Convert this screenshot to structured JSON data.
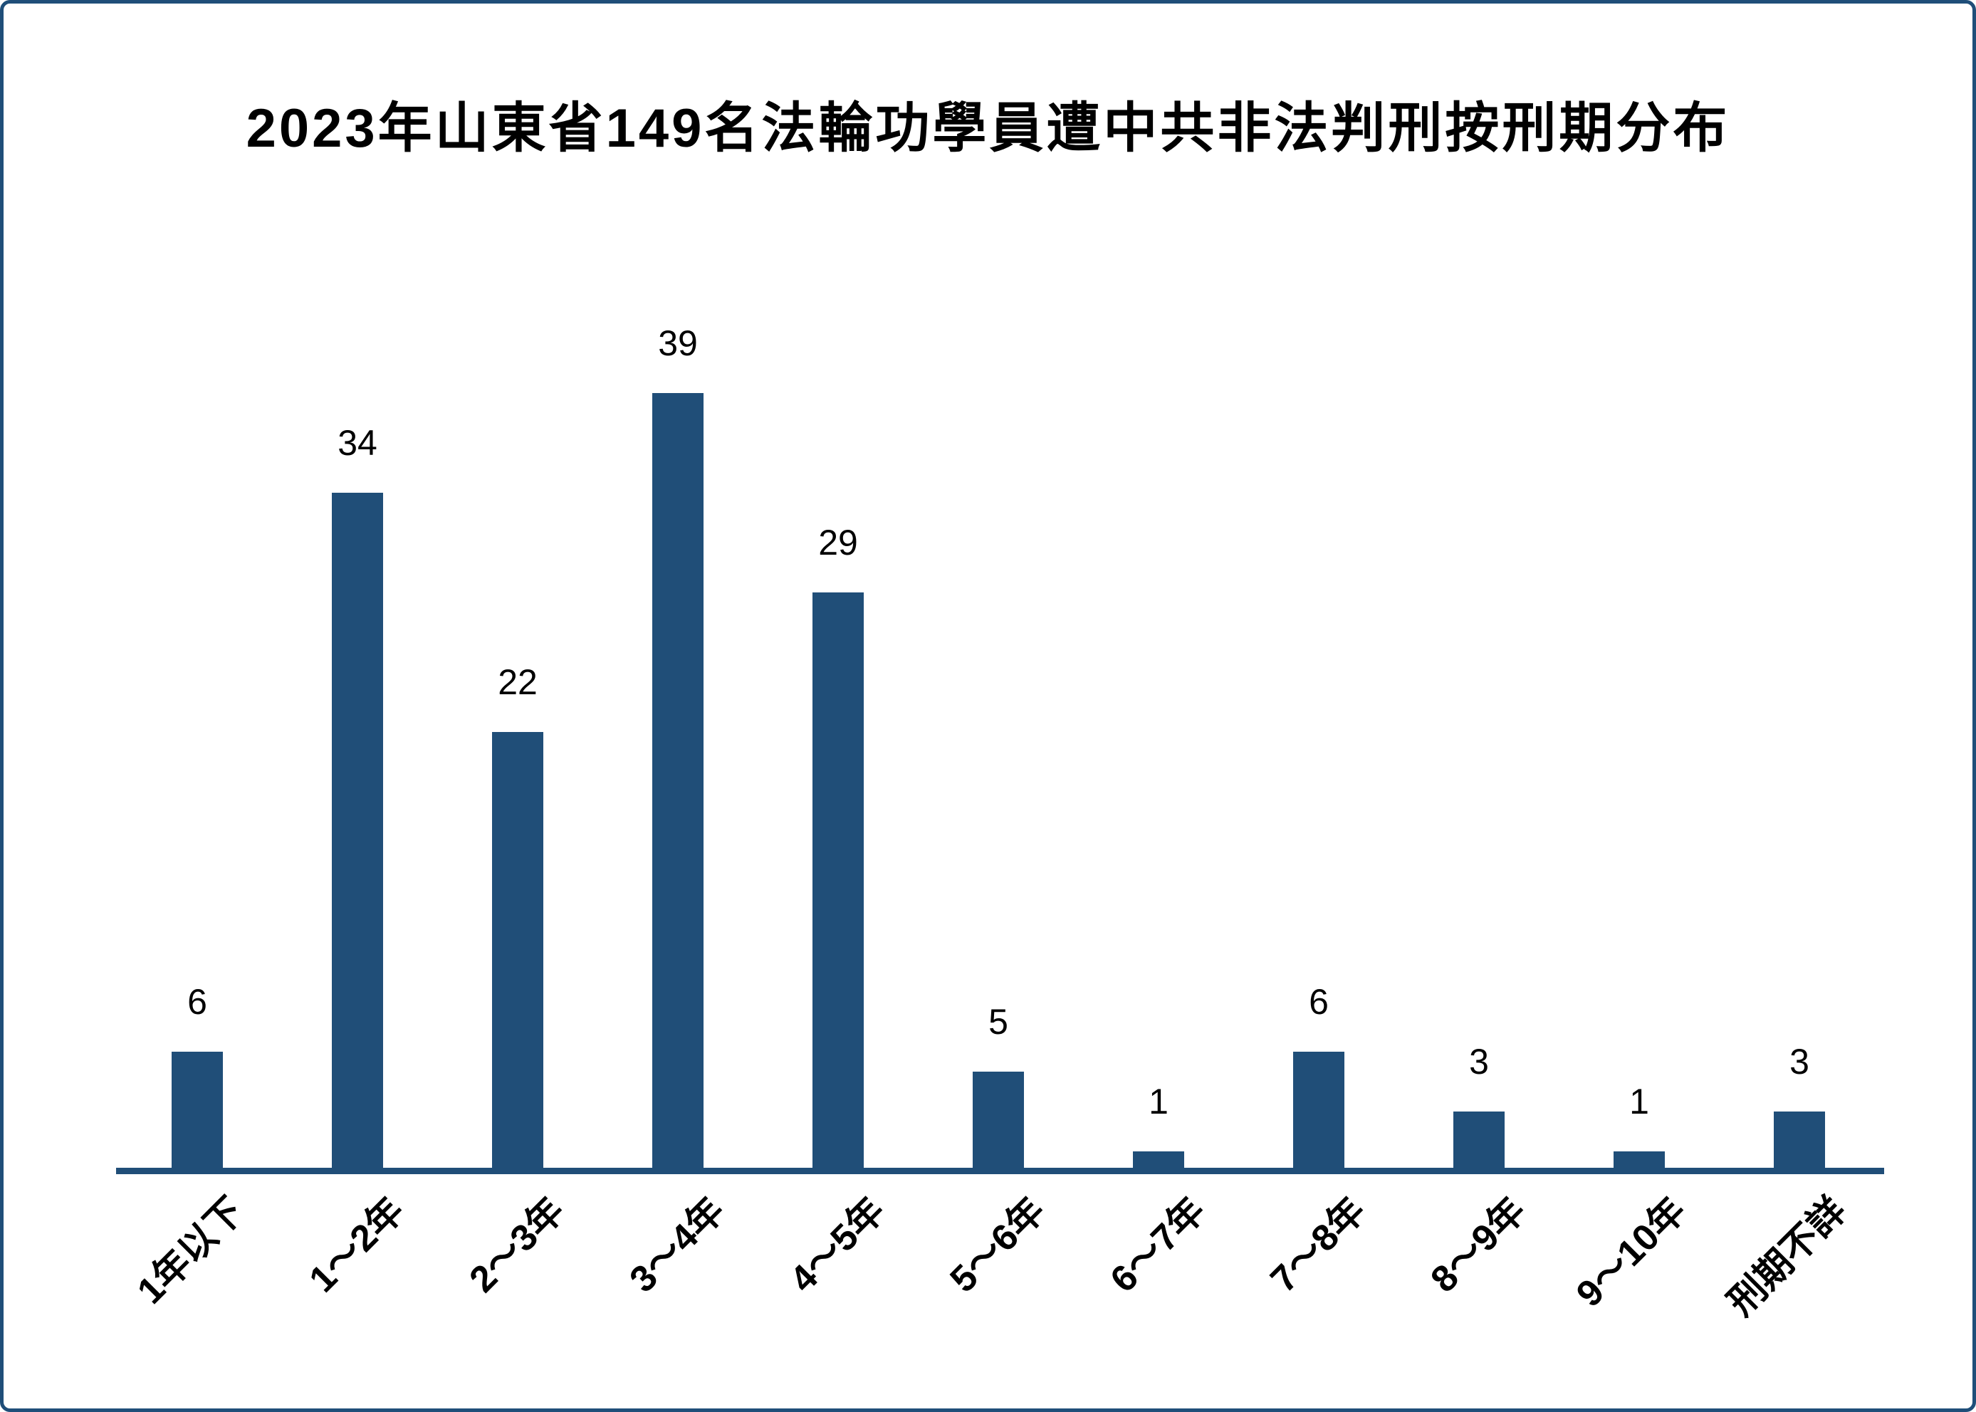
{
  "chart_data": {
    "type": "bar",
    "title": "2023年山東省149名法輪功學員遭中共非法判刑按刑期分布",
    "categories": [
      "1年以下",
      "1～2年",
      "2～3年",
      "3～4年",
      "4～5年",
      "5～6年",
      "6～7年",
      "7～8年",
      "8～9年",
      "9～10年",
      "刑期不詳"
    ],
    "values": [
      6,
      34,
      22,
      39,
      29,
      5,
      1,
      6,
      3,
      1,
      3
    ],
    "data_labels": [
      6,
      34,
      22,
      39,
      29,
      5,
      1,
      6,
      3,
      1,
      3
    ],
    "xlabel": "",
    "ylabel": "",
    "ylim": [
      0,
      40
    ],
    "grid": false,
    "legend": false,
    "x_tick_rotation": 45,
    "bar_color": "#204E78",
    "axis_color": "#204E78",
    "border_color": "#1F4E79",
    "text_color": "#000000",
    "background_color": "#FFFFFF"
  }
}
